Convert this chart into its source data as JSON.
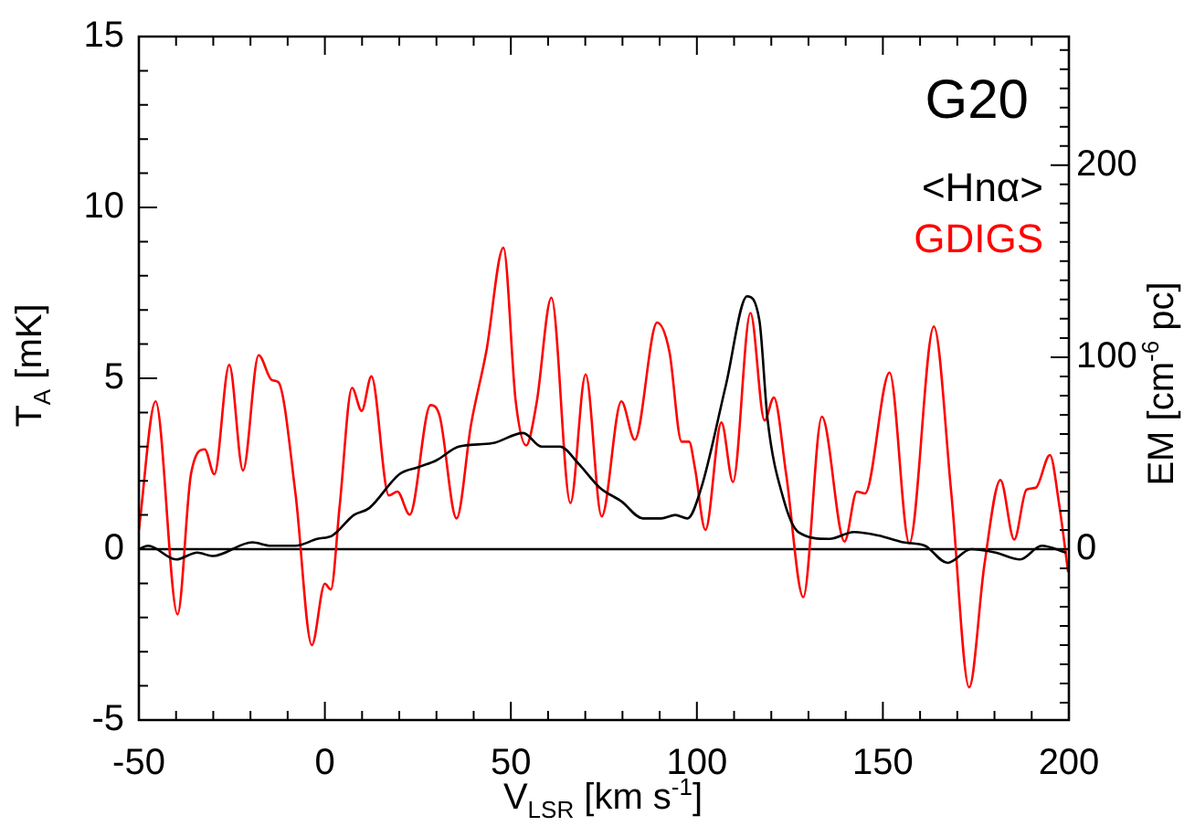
{
  "chart_data": {
    "type": "line",
    "title": "G20",
    "xlabel": "V$_{LSR}$ [km s$^{-1}$]",
    "ylabel": "T$_{A}$ [mK]",
    "y2label": "EM [cm$^{-6}$ pc]",
    "series": [
      {
        "name": "<Hnα>",
        "color": "#000000",
        "x": [
          -50,
          -47.5,
          -40,
          -34.3,
          -30.2,
          -19.5,
          -14.5,
          -7.9,
          -2.1,
          2,
          7.8,
          11.9,
          20.1,
          25.1,
          30,
          36,
          45,
          53.3,
          58.3,
          63.2,
          68.2,
          73.9,
          79.7,
          85.5,
          90.4,
          94.2,
          97.5,
          101.2,
          107.8,
          113.5,
          116.8,
          119,
          123.2,
          127.3,
          135.6,
          142.2,
          148.8,
          155.5,
          161.3,
          167.4,
          173.7,
          180.3,
          186.9,
          192.7,
          199.3
        ],
        "values": [
          0,
          0.1,
          -0.3,
          -0.1,
          -0.2,
          0.2,
          0.1,
          0.1,
          0.3,
          0.4,
          1.0,
          1.2,
          2.2,
          2.4,
          2.6,
          3.0,
          3.1,
          3.4,
          3.0,
          3.0,
          2.5,
          1.8,
          1.4,
          0.9,
          0.9,
          1.0,
          0.9,
          1.8,
          4.8,
          7.4,
          6.7,
          3.8,
          1.5,
          0.5,
          0.3,
          0.5,
          0.4,
          0.2,
          0.1,
          -0.4,
          0,
          -0.1,
          -0.3,
          0.1,
          -0.1
        ]
      },
      {
        "name": "GDIGS",
        "color": "#ff0000",
        "axis": "y2",
        "x": [
          -50,
          -45.5,
          -39.6,
          -36,
          -32.3,
          -29.7,
          -25.7,
          -22,
          -17.8,
          -14.2,
          -12.5,
          -7.9,
          -3.5,
          0,
          1.6,
          4,
          7.3,
          9.9,
          12.5,
          17.2,
          19.5,
          22.8,
          28.4,
          30.9,
          35.4,
          39.3,
          43.4,
          48,
          51.3,
          54.1,
          56.9,
          60.9,
          66,
          70.1,
          74.4,
          79.7,
          83.3,
          89.3,
          92.6,
          95.9,
          97.9,
          99.5,
          102.3,
          106.6,
          109.7,
          114.4,
          118.2,
          120.7,
          124,
          128.6,
          133.6,
          139.7,
          143,
          145.2,
          151.8,
          157.1,
          163.7,
          168.4,
          173.2,
          177.3,
          181.6,
          185.3,
          188.6,
          191.1,
          194.9,
          197.4,
          199.8
        ],
        "values": [
          10,
          77,
          -34,
          39,
          52,
          39,
          96,
          41,
          101,
          88,
          87,
          29,
          -50,
          -18,
          -21,
          23,
          84,
          72,
          90,
          28,
          30,
          18,
          75,
          69,
          16,
          65,
          103,
          157,
          77,
          54,
          76,
          131,
          24,
          91,
          17,
          77,
          57,
          118,
          103,
          56,
          56,
          42,
          10,
          66,
          35,
          123,
          67,
          79,
          39,
          -25,
          69,
          4,
          30,
          29,
          92,
          3,
          116,
          29,
          -72,
          -8,
          36,
          5,
          31,
          32,
          49,
          23,
          -12
        ]
      }
    ],
    "xlim": [
      -50,
      200
    ],
    "xticks": [
      -50,
      {
        "value": -40,
        "label": null
      },
      {
        "value": -30,
        "label": null
      },
      {
        "value": -20,
        "label": null
      },
      {
        "value": -10,
        "label": null
      },
      0,
      {
        "value": 10,
        "label": null
      },
      {
        "value": 20,
        "label": null
      },
      {
        "value": 30,
        "label": null
      },
      {
        "value": 40,
        "label": null
      },
      50,
      {
        "value": 60,
        "label": null
      },
      {
        "value": 70,
        "label": null
      },
      {
        "value": 80,
        "label": null
      },
      {
        "value": 90,
        "label": null
      },
      100,
      {
        "value": 110,
        "label": null
      },
      {
        "value": 120,
        "label": null
      },
      {
        "value": 130,
        "label": null
      },
      {
        "value": 140,
        "label": null
      },
      150,
      {
        "value": 160,
        "label": null
      },
      {
        "value": 170,
        "label": null
      },
      {
        "value": 180,
        "label": null
      },
      {
        "value": 190,
        "label": null
      },
      200
    ],
    "ylim": [
      -5,
      15
    ],
    "yticks": [
      -5,
      {
        "value": -4,
        "label": null
      },
      {
        "value": -3,
        "label": null
      },
      {
        "value": -2,
        "label": null
      },
      {
        "value": -1,
        "label": null
      },
      0,
      {
        "value": 1,
        "label": null
      },
      {
        "value": 2,
        "label": null
      },
      {
        "value": 3,
        "label": null
      },
      {
        "value": 4,
        "label": null
      },
      5,
      {
        "value": 6,
        "label": null
      },
      {
        "value": 7,
        "label": null
      },
      {
        "value": 8,
        "label": null
      },
      {
        "value": 9,
        "label": null
      },
      10,
      {
        "value": 11,
        "label": null
      },
      {
        "value": 12,
        "label": null
      },
      {
        "value": 13,
        "label": null
      },
      {
        "value": 14,
        "label": null
      },
      15
    ],
    "y2lim": [
      -89,
      267
    ],
    "y2ticks": [
      {
        "value": -80,
        "label": null
      },
      {
        "value": -70,
        "label": null
      },
      {
        "value": -60,
        "label": null
      },
      {
        "value": -50,
        "label": null
      },
      {
        "value": -40,
        "label": null
      },
      {
        "value": -30,
        "label": null
      },
      {
        "value": -20,
        "label": null
      },
      {
        "value": -10,
        "label": null
      },
      0,
      {
        "value": 10,
        "label": null
      },
      {
        "value": 20,
        "label": null
      },
      {
        "value": 30,
        "label": null
      },
      {
        "value": 40,
        "label": null
      },
      {
        "value": 50,
        "label": null
      },
      {
        "value": 60,
        "label": null
      },
      {
        "value": 70,
        "label": null
      },
      {
        "value": 80,
        "label": null
      },
      {
        "value": 90,
        "label": null
      },
      100,
      {
        "value": 110,
        "label": null
      },
      {
        "value": 120,
        "label": null
      },
      {
        "value": 130,
        "label": null
      },
      {
        "value": 140,
        "label": null
      },
      {
        "value": 150,
        "label": null
      },
      {
        "value": 160,
        "label": null
      },
      {
        "value": 170,
        "label": null
      },
      {
        "value": 180,
        "label": null
      },
      {
        "value": 190,
        "label": null
      },
      200,
      {
        "value": 210,
        "label": null
      },
      {
        "value": 220,
        "label": null
      },
      {
        "value": 230,
        "label": null
      },
      {
        "value": 240,
        "label": null
      },
      {
        "value": 250,
        "label": null
      },
      {
        "value": 260,
        "label": null
      }
    ],
    "ref_lines": [
      {
        "axis": "y",
        "value": 0,
        "color": "#000000"
      }
    ],
    "grid": false,
    "legend": "top right",
    "marker": "none",
    "line_style": "solid"
  }
}
